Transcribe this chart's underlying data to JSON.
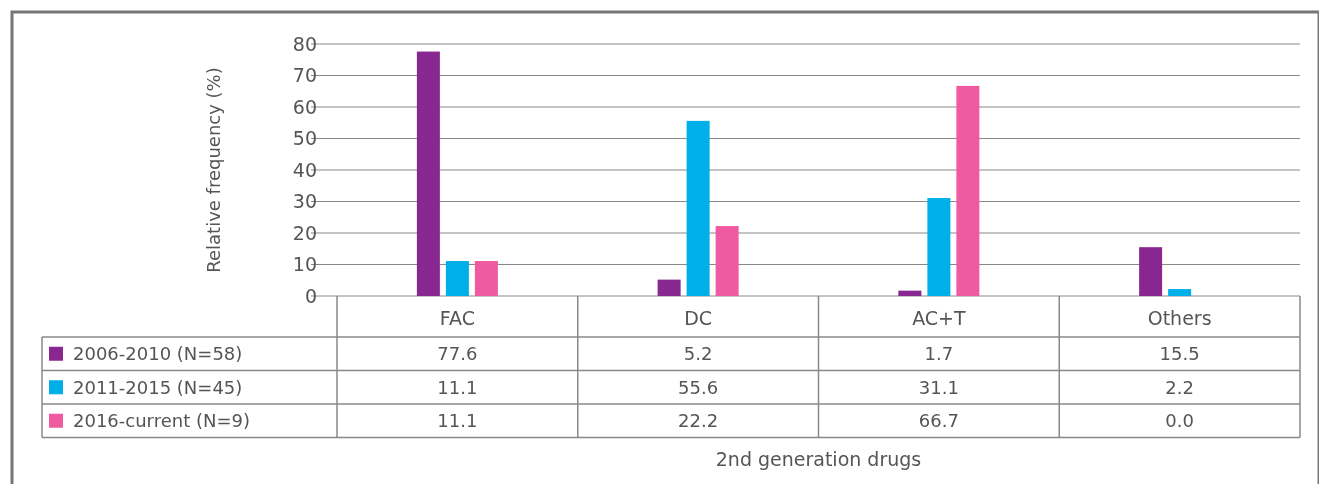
{
  "chart_data": {
    "type": "bar",
    "ylabel": "Relative frequency (%)",
    "annotations": [
      "2nd generation drugs"
    ],
    "categories": [
      "FAC",
      "DC",
      "AC+T",
      "Others"
    ],
    "series": [
      {
        "name": "2006-2010 (N=58)",
        "color": "#88278f",
        "values": [
          77.6,
          5.2,
          1.7,
          15.5
        ],
        "value_labels": [
          "77.6",
          "5.2",
          "1.7",
          "15.5"
        ]
      },
      {
        "name": "2011-2015 (N=45)",
        "color": "#00aee8",
        "values": [
          11.1,
          55.6,
          31.1,
          2.2
        ],
        "value_labels": [
          "11.1",
          "55.6",
          "31.1",
          "2.2"
        ]
      },
      {
        "name": "2016-current (N=9)",
        "color": "#f05aa0",
        "values": [
          11.1,
          22.2,
          66.7,
          0.0
        ],
        "value_labels": [
          "11.1",
          "22.2",
          "66.7",
          "0.0"
        ]
      }
    ],
    "ylim": [
      0,
      80
    ],
    "yticks": [
      0,
      10,
      20,
      30,
      40,
      50,
      60,
      70,
      80
    ],
    "grid": "y",
    "legend": "bottom"
  }
}
